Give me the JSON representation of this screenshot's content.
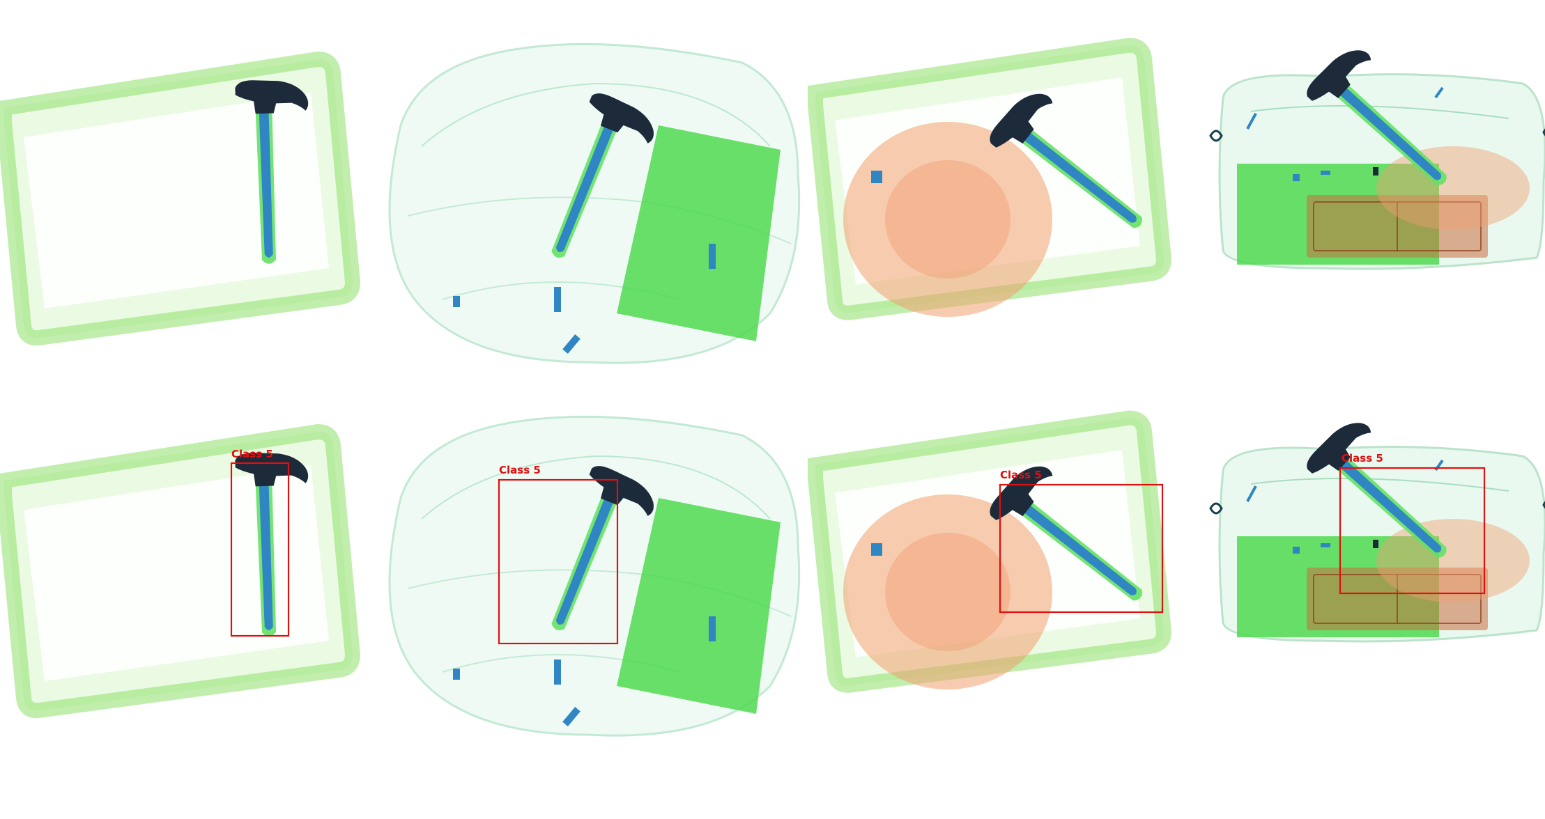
{
  "figure": {
    "rows": [
      "original",
      "detected"
    ],
    "scans": [
      "tray-scan",
      "soft-bag-scan",
      "tray-with-cloth-scan",
      "handbag-scan"
    ],
    "detections": [
      {
        "scan": "tray-scan",
        "label": "Class 5"
      },
      {
        "scan": "soft-bag-scan",
        "label": "Class 5"
      },
      {
        "scan": "tray-with-cloth-scan",
        "label": "Class 5"
      },
      {
        "scan": "handbag-scan",
        "label": "Class 5"
      }
    ],
    "colors": {
      "box": "#e01010",
      "organic_green": "#5fe05f",
      "metal_blue": "#2f86c2",
      "dense_dark": "#1c2a3a",
      "organic_orange": "#f0a070"
    }
  }
}
